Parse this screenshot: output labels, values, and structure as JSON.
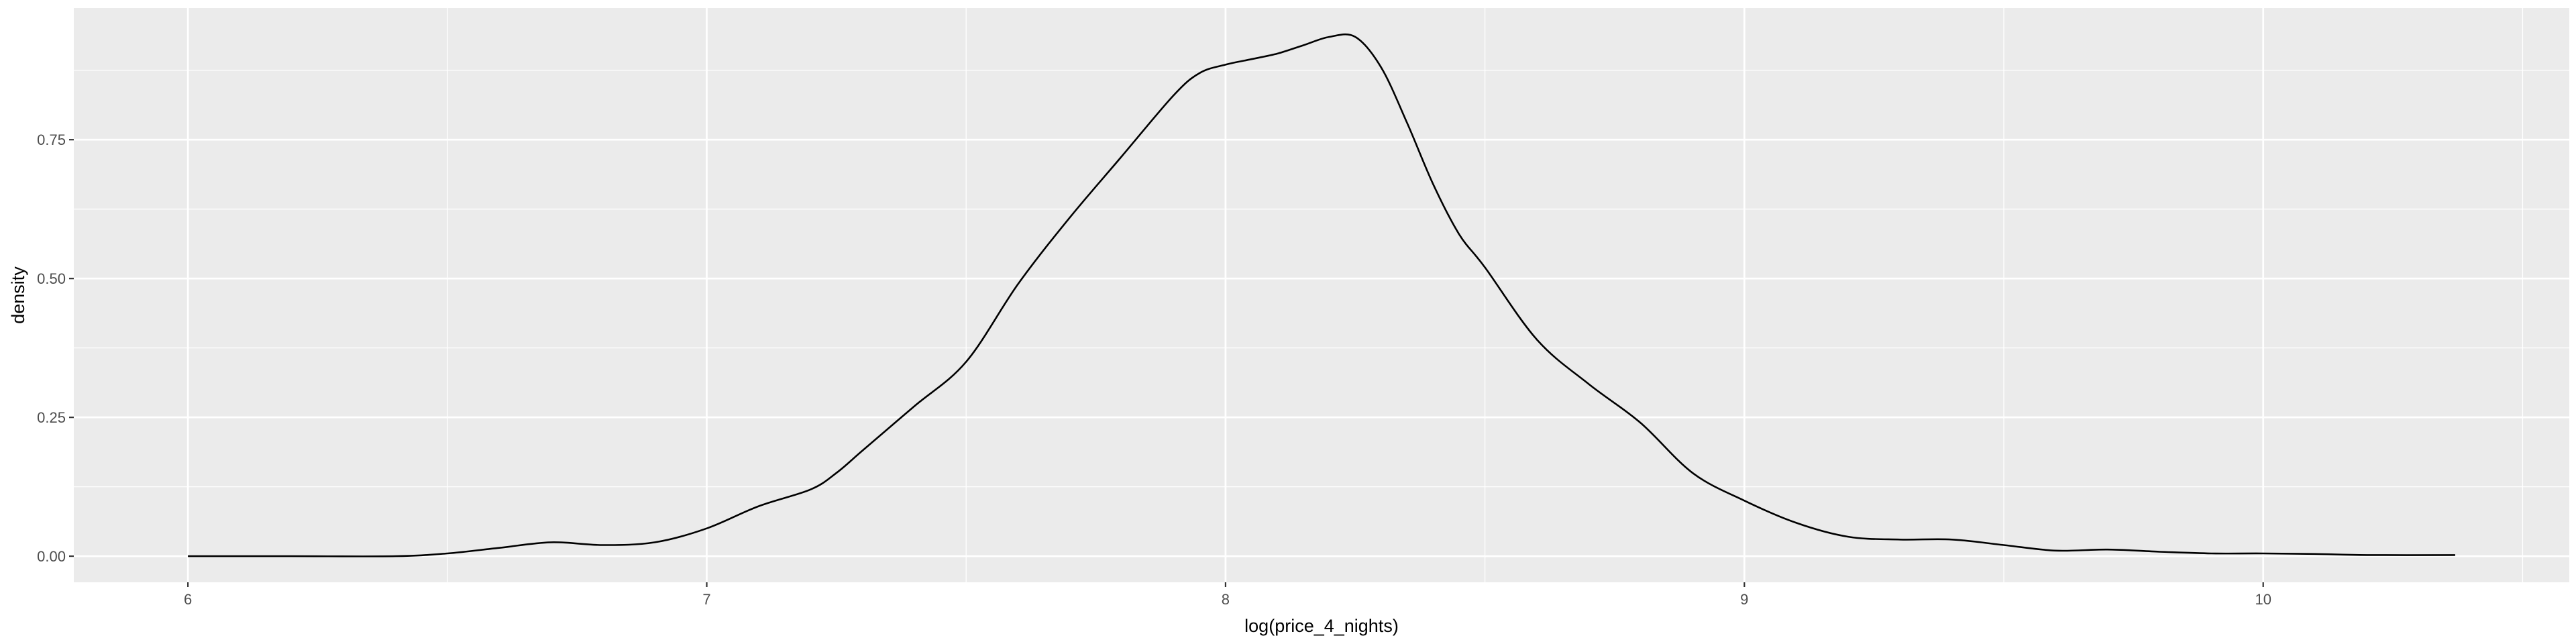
{
  "chart_data": {
    "type": "line",
    "xlabel": "log(price_4_nights)",
    "ylabel": "density",
    "xlim": [
      5.78,
      10.59
    ],
    "ylim": [
      -0.047,
      0.987
    ],
    "x_ticks": [
      6,
      7,
      8,
      9,
      10
    ],
    "x_tick_labels": [
      "6",
      "7",
      "8",
      "9",
      "10"
    ],
    "y_ticks": [
      0,
      0.25,
      0.5,
      0.75
    ],
    "y_tick_labels": [
      "0.00",
      "0.25",
      "0.50",
      "0.75"
    ],
    "grid": true,
    "colors": {
      "panel": "#ebebeb",
      "grid": "#ffffff",
      "line": "#000000",
      "tick_text": "#4d4d4d"
    },
    "series": [
      {
        "x": [
          6.0,
          6.2,
          6.4,
          6.5,
          6.6,
          6.7,
          6.8,
          6.9,
          7.0,
          7.1,
          7.2,
          7.25,
          7.3,
          7.4,
          7.5,
          7.6,
          7.7,
          7.8,
          7.9,
          7.95,
          8.0,
          8.05,
          8.1,
          8.15,
          8.2,
          8.25,
          8.3,
          8.35,
          8.4,
          8.45,
          8.5,
          8.6,
          8.7,
          8.8,
          8.9,
          9.0,
          9.1,
          9.2,
          9.3,
          9.4,
          9.5,
          9.6,
          9.7,
          9.8,
          9.9,
          10.0,
          10.1,
          10.2,
          10.37
        ],
        "y": [
          0.0,
          0.0,
          0.0,
          0.005,
          0.015,
          0.025,
          0.02,
          0.025,
          0.05,
          0.09,
          0.12,
          0.15,
          0.19,
          0.27,
          0.35,
          0.49,
          0.61,
          0.72,
          0.83,
          0.87,
          0.885,
          0.895,
          0.905,
          0.92,
          0.935,
          0.935,
          0.88,
          0.78,
          0.67,
          0.58,
          0.52,
          0.39,
          0.31,
          0.24,
          0.15,
          0.1,
          0.06,
          0.035,
          0.03,
          0.03,
          0.02,
          0.01,
          0.012,
          0.008,
          0.005,
          0.005,
          0.004,
          0.002,
          0.002
        ]
      }
    ]
  }
}
